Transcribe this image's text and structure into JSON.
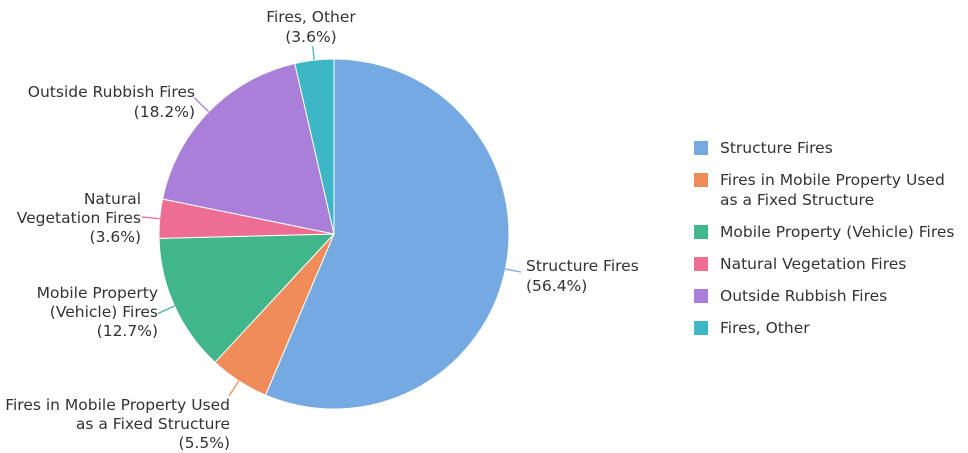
{
  "chart_data": {
    "type": "pie",
    "title": "",
    "start_angle_deg": 90,
    "direction": "clockwise",
    "legend_position": "right",
    "slices": [
      {
        "label": "Structure Fires",
        "value": 56.4,
        "pct_text": "(56.4%)",
        "color": "#75a9e2",
        "callout_lines": [
          "Structure Fires"
        ]
      },
      {
        "label": "Fires in Mobile Property Used as a Fixed Structure",
        "value": 5.5,
        "pct_text": "(5.5%)",
        "color": "#ef8c5a",
        "callout_lines": [
          "Fires in Mobile Property Used",
          "as a Fixed Structure"
        ]
      },
      {
        "label": "Mobile Property (Vehicle) Fires",
        "value": 12.7,
        "pct_text": "(12.7%)",
        "color": "#40b68a",
        "callout_lines": [
          "Mobile Property",
          "(Vehicle) Fires"
        ]
      },
      {
        "label": "Natural Vegetation Fires",
        "value": 3.6,
        "pct_text": "(3.6%)",
        "color": "#ee6d92",
        "callout_lines": [
          "Natural",
          "Vegetation Fires"
        ]
      },
      {
        "label": "Outside Rubbish Fires",
        "value": 18.2,
        "pct_text": "(18.2%)",
        "color": "#a97fd9",
        "callout_lines": [
          "Outside Rubbish Fires"
        ]
      },
      {
        "label": "Fires, Other",
        "value": 3.6,
        "pct_text": "(3.6%)",
        "color": "#3db6c5",
        "callout_lines": [
          "Fires, Other"
        ]
      }
    ],
    "legend": [
      {
        "label": "Structure Fires"
      },
      {
        "label": "Fires in Mobile Property Used as a Fixed Structure"
      },
      {
        "label": "Mobile Property (Vehicle) Fires"
      },
      {
        "label": "Natural Vegetation Fires"
      },
      {
        "label": "Outside Rubbish Fires"
      },
      {
        "label": "Fires, Other"
      }
    ]
  }
}
